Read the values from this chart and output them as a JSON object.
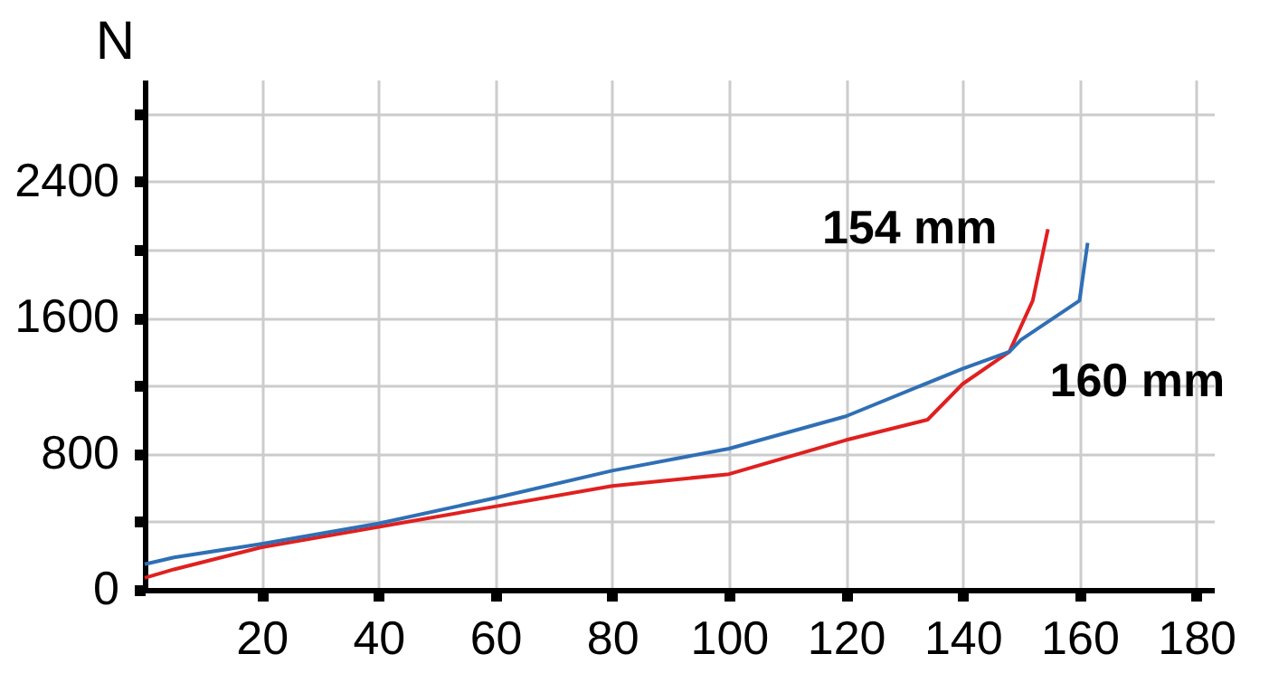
{
  "chart_data": {
    "type": "line",
    "ylabel": "N",
    "xlim": [
      0,
      183
    ],
    "xticks": [
      20,
      40,
      60,
      80,
      100,
      120,
      140,
      160,
      180
    ],
    "ylim": [
      0,
      3000
    ],
    "yticks": [
      0,
      {
        "value": 400,
        "label": null
      },
      800,
      {
        "value": 1200,
        "label": null
      },
      1600,
      {
        "value": 2000,
        "label": null
      },
      2400,
      {
        "value": 2800,
        "label": null
      }
    ],
    "grid": true,
    "marker": "none",
    "line_style": "solid",
    "legend": false,
    "series": [
      {
        "name": "154 mm",
        "color": "#e02020",
        "x": [
          0,
          5,
          20,
          40,
          60,
          80,
          100,
          120,
          134,
          140,
          148,
          150,
          152,
          154.6
        ],
        "values": [
          70,
          120,
          250,
          370,
          490,
          610,
          680,
          880,
          1000,
          1210,
          1400,
          1550,
          1700,
          2120
        ]
      },
      {
        "name": "160 mm",
        "color": "#2f6fb5",
        "x": [
          0,
          5,
          20,
          40,
          60,
          80,
          100,
          120,
          140,
          148,
          150,
          160,
          161.4
        ],
        "values": [
          150,
          190,
          270,
          390,
          540,
          700,
          830,
          1020,
          1300,
          1400,
          1470,
          1700,
          2040
        ]
      }
    ]
  }
}
